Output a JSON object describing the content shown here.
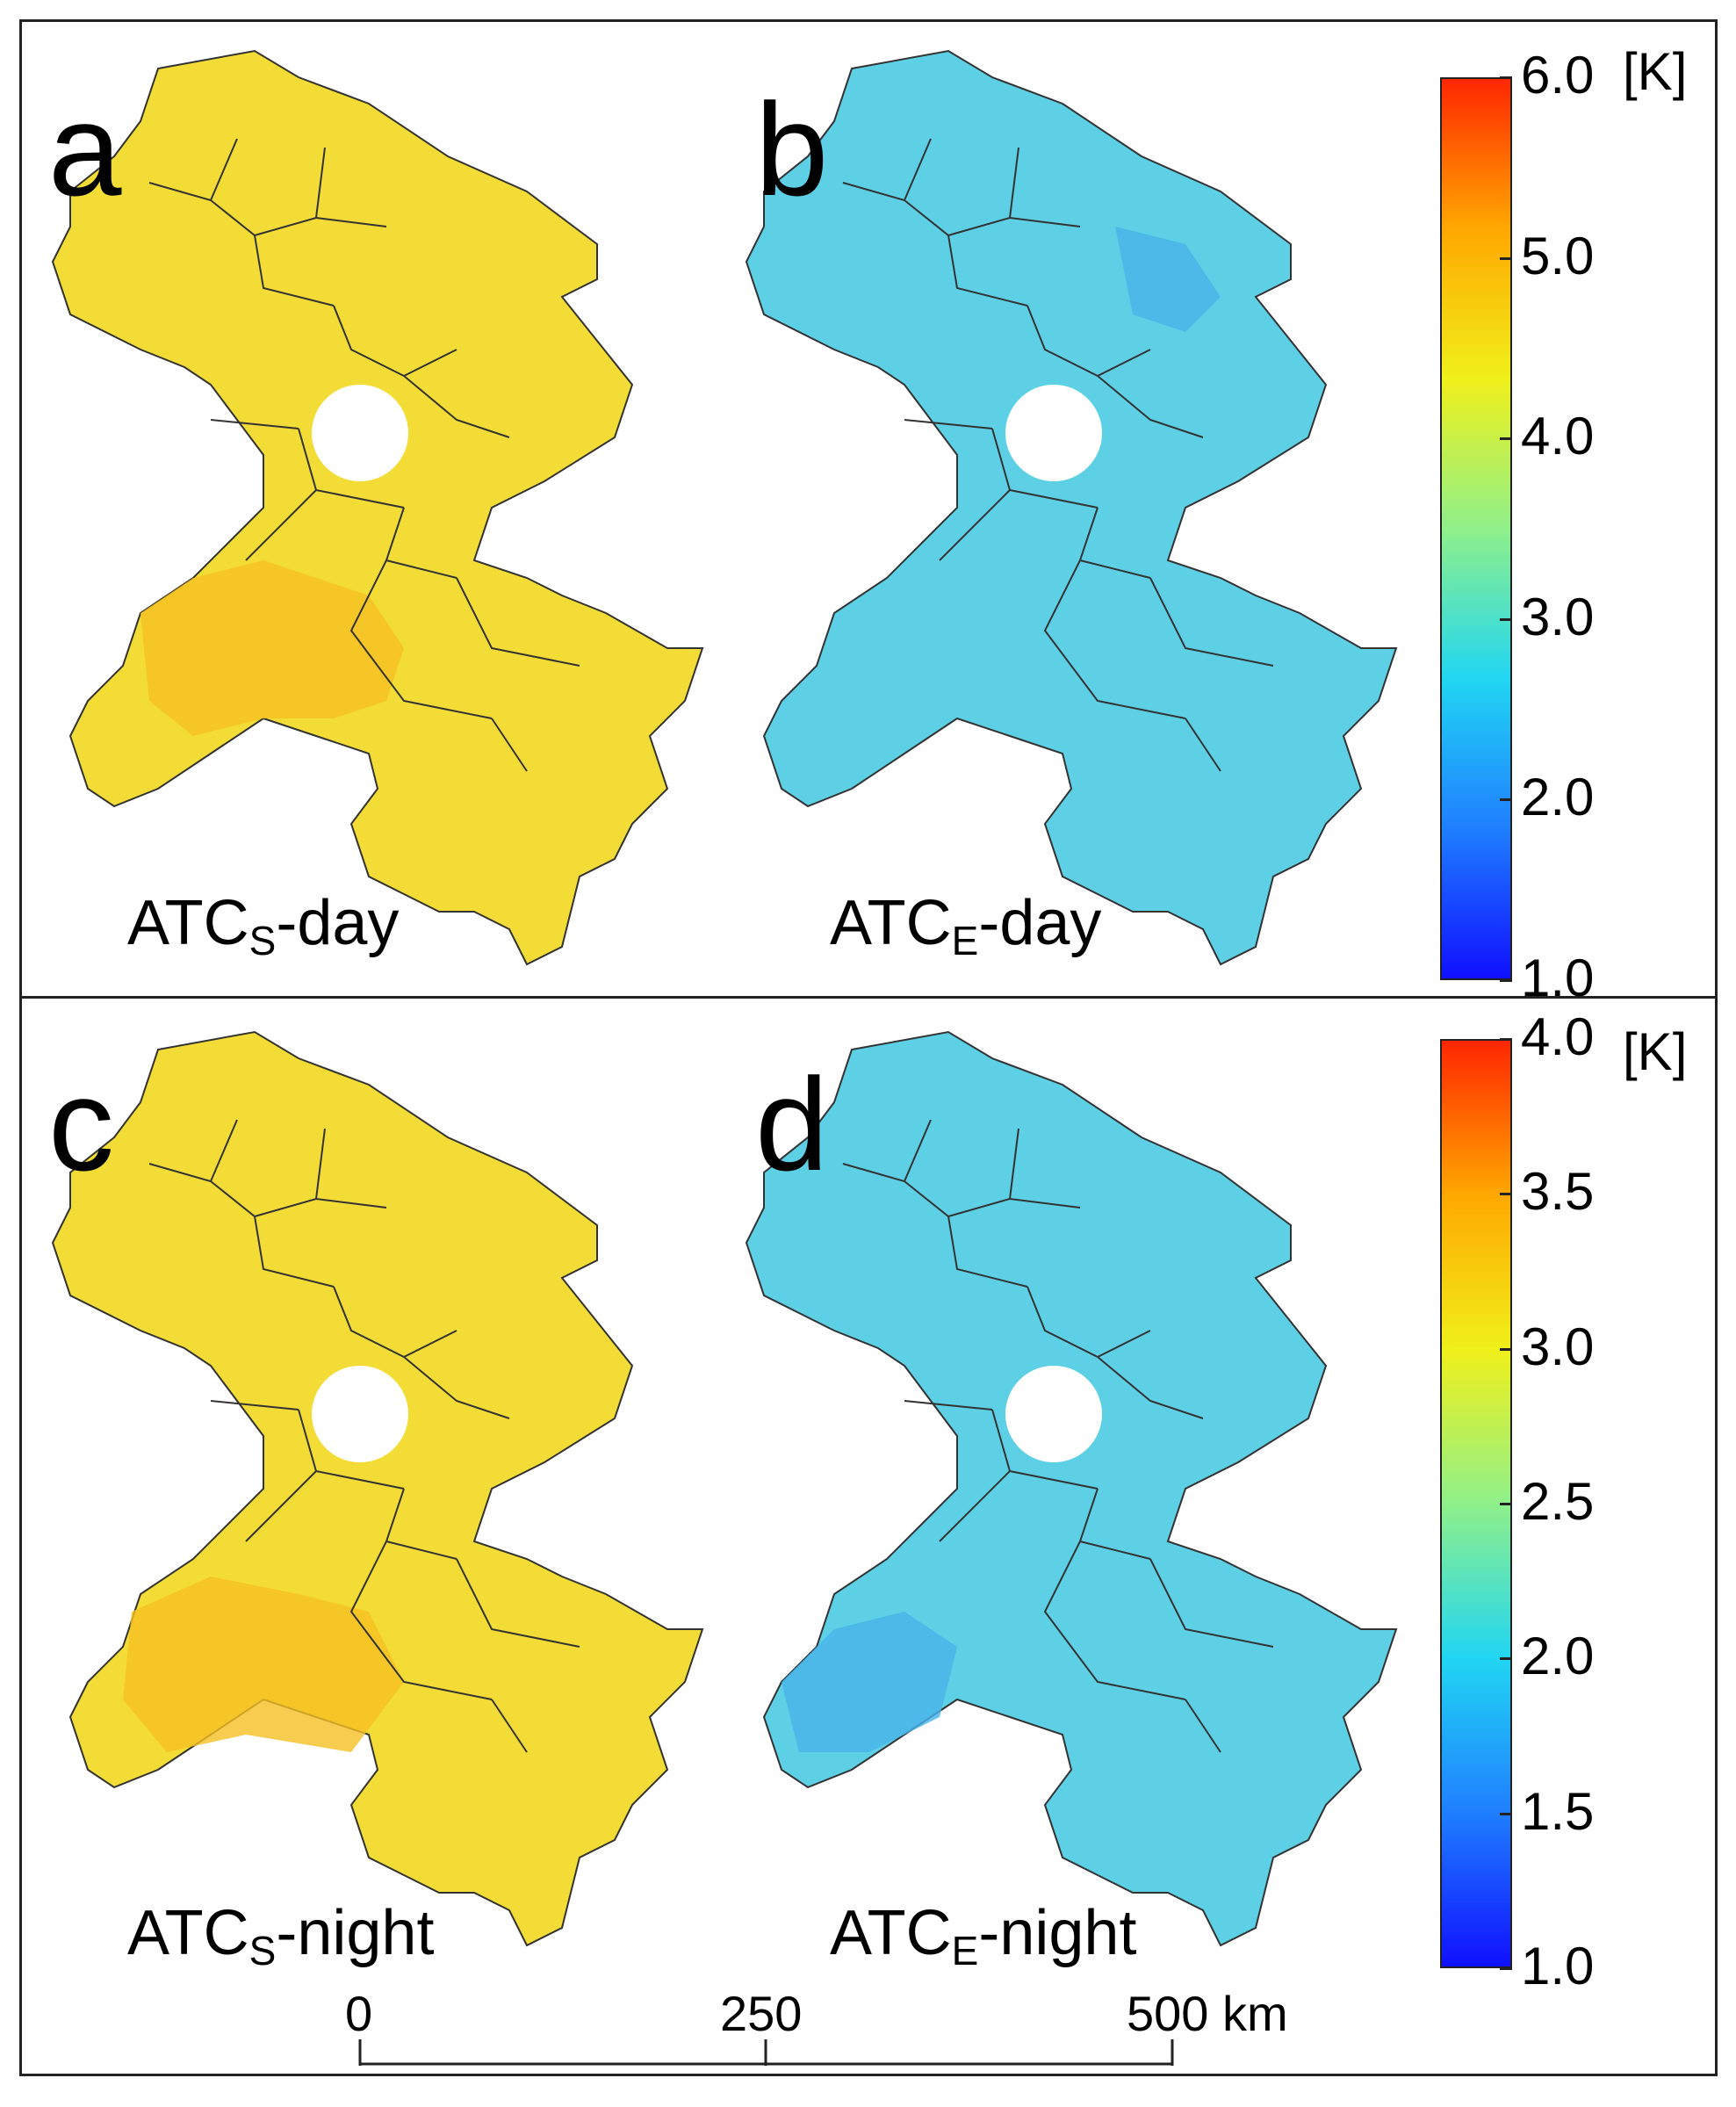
{
  "panels": [
    {
      "letter": "a",
      "caption_main": "ATC",
      "caption_sub": "S",
      "caption_suffix": "-day",
      "palette": "warm",
      "colorbar": "top"
    },
    {
      "letter": "b",
      "caption_main": "ATC",
      "caption_sub": "E",
      "caption_suffix": "-day",
      "palette": "cool",
      "colorbar": "top"
    },
    {
      "letter": "c",
      "caption_main": "ATC",
      "caption_sub": "S",
      "caption_suffix": "-night",
      "palette": "warm",
      "colorbar": "bottom"
    },
    {
      "letter": "d",
      "caption_main": "ATC",
      "caption_sub": "E",
      "caption_suffix": "-night",
      "palette": "cool",
      "colorbar": "bottom"
    }
  ],
  "colorbars": {
    "top": {
      "min": 1.0,
      "max": 6.0,
      "unit": "[K]",
      "ticks": [
        "6.0",
        "5.0",
        "4.0",
        "3.0",
        "2.0",
        "1.0"
      ]
    },
    "bottom": {
      "min": 1.0,
      "max": 4.0,
      "unit": "[K]",
      "ticks": [
        "4.0",
        "3.5",
        "3.0",
        "2.5",
        "2.0",
        "1.5",
        "1.0"
      ]
    }
  },
  "palettes": {
    "warm": {
      "fill": "#f3dc35",
      "accent": "#f6c023",
      "lake": "#ffffff"
    },
    "cool": {
      "fill": "#5ed0e6",
      "accent": "#47b3ea",
      "lake": "#ffffff"
    }
  },
  "colormap": [
    "#1010ff",
    "#1f7fff",
    "#21d6f2",
    "#8ff08a",
    "#f0f01a",
    "#ffa800",
    "#ff2600"
  ],
  "scalebar": {
    "labels": [
      "0",
      "250",
      "500 km"
    ]
  }
}
